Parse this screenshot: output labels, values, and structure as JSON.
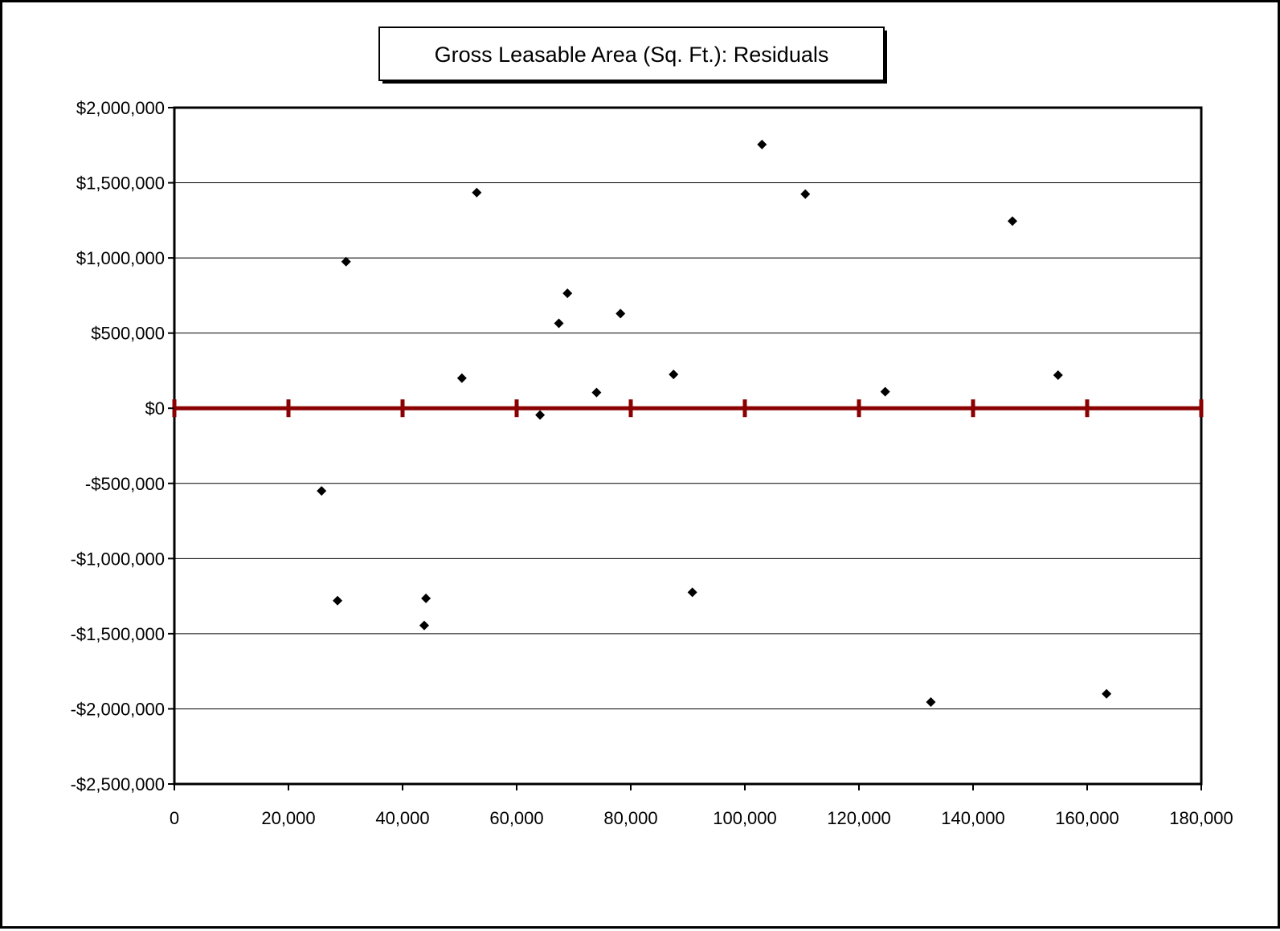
{
  "chart_data": {
    "type": "scatter",
    "title": "Gross Leasable Area (Sq. Ft.): Residuals",
    "xlabel": "",
    "ylabel": "",
    "xlim": [
      0,
      180000
    ],
    "ylim": [
      -2500000,
      2000000
    ],
    "x_ticks": [
      0,
      20000,
      40000,
      60000,
      80000,
      100000,
      120000,
      140000,
      160000,
      180000
    ],
    "x_tick_labels": [
      "0",
      "20,000",
      "40,000",
      "60,000",
      "80,000",
      "100,000",
      "120,000",
      "140,000",
      "160,000",
      "180,000"
    ],
    "y_ticks": [
      2000000,
      1500000,
      1000000,
      500000,
      0,
      -500000,
      -1000000,
      -1500000,
      -2000000,
      -2500000
    ],
    "y_tick_labels": [
      "$2,000,000",
      "$1,500,000",
      "$1,000,000",
      "$500,000",
      "$0",
      "-$500,000",
      "-$1,000,000",
      "-$1,500,000",
      "-$2,000,000",
      "-$2,500,000"
    ],
    "grid": true,
    "legend": "none",
    "colors": {
      "points": "#000000",
      "zero_line": "#8b0000",
      "gridlines": "#000000",
      "frame": "#000000"
    },
    "series": [
      {
        "marker": "diamond",
        "points": [
          {
            "x": 25800,
            "y": -550000
          },
          {
            "x": 28600,
            "y": -1280000
          },
          {
            "x": 30100,
            "y": 975000
          },
          {
            "x": 43800,
            "y": -1445000
          },
          {
            "x": 44100,
            "y": -1265000
          },
          {
            "x": 50400,
            "y": 200000
          },
          {
            "x": 53000,
            "y": 1435000
          },
          {
            "x": 64100,
            "y": -45000
          },
          {
            "x": 67400,
            "y": 565000
          },
          {
            "x": 68900,
            "y": 765000
          },
          {
            "x": 74000,
            "y": 105000
          },
          {
            "x": 78200,
            "y": 630000
          },
          {
            "x": 87500,
            "y": 225000
          },
          {
            "x": 90800,
            "y": -1225000
          },
          {
            "x": 103000,
            "y": 1755000
          },
          {
            "x": 110600,
            "y": 1425000
          },
          {
            "x": 124600,
            "y": 110000
          },
          {
            "x": 132600,
            "y": -1955000
          },
          {
            "x": 146900,
            "y": 1245000
          },
          {
            "x": 154900,
            "y": 220000
          },
          {
            "x": 163400,
            "y": -1900000
          }
        ]
      }
    ]
  }
}
